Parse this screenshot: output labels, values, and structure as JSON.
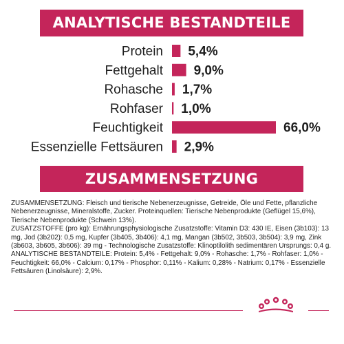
{
  "header_analytic": "ANALYTISCHE BESTANDTEILE",
  "header_composition": "ZUSAMMENSETZUNG",
  "colors": {
    "accent": "#c4255a",
    "text": "#1e1e1e",
    "background": "#ffffff"
  },
  "chart_data": {
    "type": "bar",
    "orientation": "horizontal",
    "categories": [
      "Protein",
      "Fettgehalt",
      "Rohasche",
      "Rohfaser",
      "Feuchtigkeit",
      "Essenzielle Fettsäuren"
    ],
    "values": [
      5.4,
      9.0,
      1.7,
      1.0,
      66.0,
      2.9
    ],
    "value_labels": [
      "5,4%",
      "9,0%",
      "1,7%",
      "1,0%",
      "66,0%",
      "2,9%"
    ],
    "unit": "%",
    "xlim": [
      0,
      66.0
    ],
    "grid": false,
    "legend": "none"
  },
  "composition_paragraphs": [
    "ZUSAMMENSETZUNG: Fleisch und tierische Nebenerzeugnisse, Getreide, Öle und Fette, pflanzliche Nebenerzeugnisse, Mineralstoffe, Zucker. Proteinquellen: Tierische Nebenprodukte (Geflügel 15,6%), Tierische Nebenprodukte (Schwein 13%).",
    "ZUSATZSTOFFE (pro kg): Ernährungsphysiologische Zusatzstoffe: Vitamin D3: 430 IE, Eisen (3b103): 13 mg, Jod (3b202): 0,5 mg, Kupfer (3b405, 3b406): 4,1 mg, Mangan (3b502, 3b503, 3b504): 3,9 mg, Zink (3b603, 3b605, 3b606): 39 mg - Technologische Zusatzstoffe: Klinoptilolith sedimentären Ursprungs: 0,4 g.",
    "ANALYTISCHE BESTANDTEILE: Protein: 5,4% - Fettgehalt: 9,0% - Rohasche: 1,7% - Rohfaser: 1,0% - Feuchtigkeit: 66,0% - Calcium: 0,17% - Phosphor: 0,11% - Kalium: 0,28% - Natrium: 0,17% - Essenzielle Fettsäuren (Linolsäure): 2,9%."
  ],
  "logo": {
    "name": "crown-logo-icon"
  }
}
